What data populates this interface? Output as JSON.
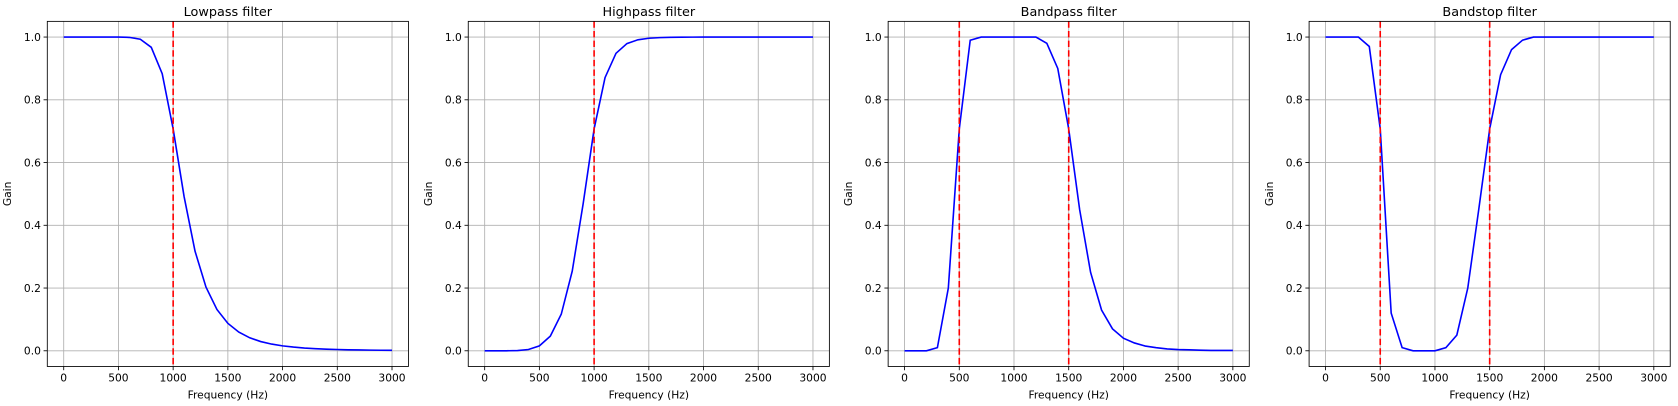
{
  "chart_data": [
    {
      "type": "line",
      "title": "Lowpass filter",
      "x_label": "Frequency (Hz)",
      "y_label": "Gain",
      "x": [
        0,
        100,
        200,
        300,
        400,
        500,
        600,
        700,
        800,
        900,
        1000,
        1100,
        1200,
        1300,
        1400,
        1500,
        1600,
        1700,
        1800,
        1900,
        2000,
        2100,
        2200,
        2300,
        2400,
        2500,
        2600,
        2700,
        2800,
        2900,
        3000
      ],
      "series": [
        {
          "color": "#0000ff",
          "values": [
            1,
            1,
            1,
            1,
            1,
            0.9999,
            0.9989,
            0.9931,
            0.9673,
            0.8831,
            0.7071,
            0.4916,
            0.3176,
            0.2029,
            0.1317,
            0.0875,
            0.0595,
            0.0414,
            0.0294,
            0.0213,
            0.0156,
            0.0117,
            0.0088,
            0.0068,
            0.0052,
            0.0041,
            0.0032,
            0.0026,
            0.0021,
            0.0017,
            0.0014
          ]
        }
      ],
      "cutoffs": [
        1000
      ],
      "cutoff_color": "#ff0000",
      "xlim": [
        -150,
        3150
      ],
      "xticks": [
        0,
        500,
        1000,
        1500,
        2000,
        2500,
        3000
      ],
      "ylim": [
        -0.05,
        1.05
      ],
      "yticks": [
        {
          "value": 0,
          "label": "0.0"
        },
        {
          "value": 0.2,
          "label": "0.2"
        },
        {
          "value": 0.4,
          "label": "0.4"
        },
        {
          "value": 0.6,
          "label": "0.6"
        },
        {
          "value": 0.8,
          "label": "0.8"
        },
        {
          "value": 1,
          "label": "1.0"
        }
      ],
      "grid": true
    },
    {
      "type": "line",
      "title": "Highpass filter",
      "x_label": "Frequency (Hz)",
      "y_label": "Gain",
      "x": [
        0,
        100,
        200,
        300,
        400,
        500,
        600,
        700,
        800,
        900,
        1000,
        1100,
        1200,
        1300,
        1400,
        1500,
        1600,
        1700,
        1800,
        1900,
        2000,
        2100,
        2200,
        2300,
        2400,
        2500,
        2600,
        2700,
        2800,
        2900,
        3000
      ],
      "series": [
        {
          "color": "#0000ff",
          "values": [
            0,
            0,
            0,
            0.0007,
            0.0041,
            0.0156,
            0.0466,
            0.1168,
            0.2535,
            0.4692,
            0.7071,
            0.8708,
            0.9482,
            0.9792,
            0.9913,
            0.9962,
            0.9982,
            0.9991,
            0.9996,
            0.9998,
            0.9999,
            1,
            1,
            1,
            1,
            1,
            1,
            1,
            1,
            1,
            1
          ]
        }
      ],
      "cutoffs": [
        1000
      ],
      "cutoff_color": "#ff0000",
      "xlim": [
        -150,
        3150
      ],
      "xticks": [
        0,
        500,
        1000,
        1500,
        2000,
        2500,
        3000
      ],
      "ylim": [
        -0.05,
        1.05
      ],
      "yticks": [
        {
          "value": 0,
          "label": "0.0"
        },
        {
          "value": 0.2,
          "label": "0.2"
        },
        {
          "value": 0.4,
          "label": "0.4"
        },
        {
          "value": 0.6,
          "label": "0.6"
        },
        {
          "value": 0.8,
          "label": "0.8"
        },
        {
          "value": 1,
          "label": "1.0"
        }
      ],
      "grid": true
    },
    {
      "type": "line",
      "title": "Bandpass filter",
      "x_label": "Frequency (Hz)",
      "y_label": "Gain",
      "x": [
        0,
        100,
        200,
        300,
        400,
        500,
        600,
        700,
        800,
        900,
        1000,
        1100,
        1200,
        1300,
        1400,
        1500,
        1600,
        1700,
        1800,
        1900,
        2000,
        2100,
        2200,
        2300,
        2400,
        2500,
        2600,
        2700,
        2800,
        2900,
        3000
      ],
      "series": [
        {
          "color": "#0000ff",
          "values": [
            0,
            0,
            0,
            0.01,
            0.2,
            0.707,
            0.99,
            1,
            1,
            1,
            1,
            1,
            1,
            0.98,
            0.9,
            0.707,
            0.45,
            0.25,
            0.13,
            0.07,
            0.04,
            0.025,
            0.015,
            0.01,
            0.006,
            0.004,
            0.003,
            0.002,
            0.001,
            0.001,
            0.001
          ]
        }
      ],
      "cutoffs": [
        500,
        1500
      ],
      "cutoff_color": "#ff0000",
      "xlim": [
        -150,
        3150
      ],
      "xticks": [
        0,
        500,
        1000,
        1500,
        2000,
        2500,
        3000
      ],
      "ylim": [
        -0.05,
        1.05
      ],
      "yticks": [
        {
          "value": 0,
          "label": "0.0"
        },
        {
          "value": 0.2,
          "label": "0.2"
        },
        {
          "value": 0.4,
          "label": "0.4"
        },
        {
          "value": 0.6,
          "label": "0.6"
        },
        {
          "value": 0.8,
          "label": "0.8"
        },
        {
          "value": 1,
          "label": "1.0"
        }
      ],
      "grid": true
    },
    {
      "type": "line",
      "title": "Bandstop filter",
      "x_label": "Frequency (Hz)",
      "y_label": "Gain",
      "x": [
        0,
        100,
        200,
        300,
        400,
        500,
        600,
        700,
        800,
        900,
        1000,
        1100,
        1200,
        1300,
        1400,
        1500,
        1600,
        1700,
        1800,
        1900,
        2000,
        2100,
        2200,
        2300,
        2400,
        2500,
        2600,
        2700,
        2800,
        2900,
        3000
      ],
      "series": [
        {
          "color": "#0000ff",
          "values": [
            1,
            1,
            1,
            1,
            0.97,
            0.707,
            0.12,
            0.01,
            0,
            0,
            0,
            0.01,
            0.05,
            0.2,
            0.45,
            0.707,
            0.88,
            0.96,
            0.99,
            1,
            1,
            1,
            1,
            1,
            1,
            1,
            1,
            1,
            1,
            1,
            1
          ]
        }
      ],
      "cutoffs": [
        500,
        1500
      ],
      "cutoff_color": "#ff0000",
      "xlim": [
        -150,
        3150
      ],
      "xticks": [
        0,
        500,
        1000,
        1500,
        2000,
        2500,
        3000
      ],
      "ylim": [
        -0.05,
        1.05
      ],
      "yticks": [
        {
          "value": 0,
          "label": "0.0"
        },
        {
          "value": 0.2,
          "label": "0.2"
        },
        {
          "value": 0.4,
          "label": "0.4"
        },
        {
          "value": 0.6,
          "label": "0.6"
        },
        {
          "value": 0.8,
          "label": "0.8"
        },
        {
          "value": 1,
          "label": "1.0"
        }
      ],
      "grid": true
    }
  ]
}
